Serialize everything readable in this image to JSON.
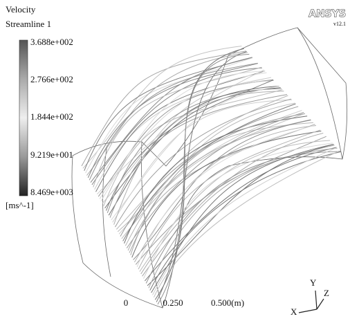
{
  "legend": {
    "title": [
      "Velocity",
      "Streamline 1"
    ],
    "labels": [
      "3.688e+002",
      "2.766e+002",
      "1.844e+002",
      "9.219e+001",
      "8.469e+003"
    ],
    "unit": "[ms^-1]"
  },
  "logo": {
    "name": "ANSYS",
    "version": "v12.1"
  },
  "scale": {
    "labels": [
      "0",
      "0.250",
      "0.500(m)"
    ]
  },
  "triad": {
    "x": "X",
    "y": "Y",
    "z": "Z"
  }
}
